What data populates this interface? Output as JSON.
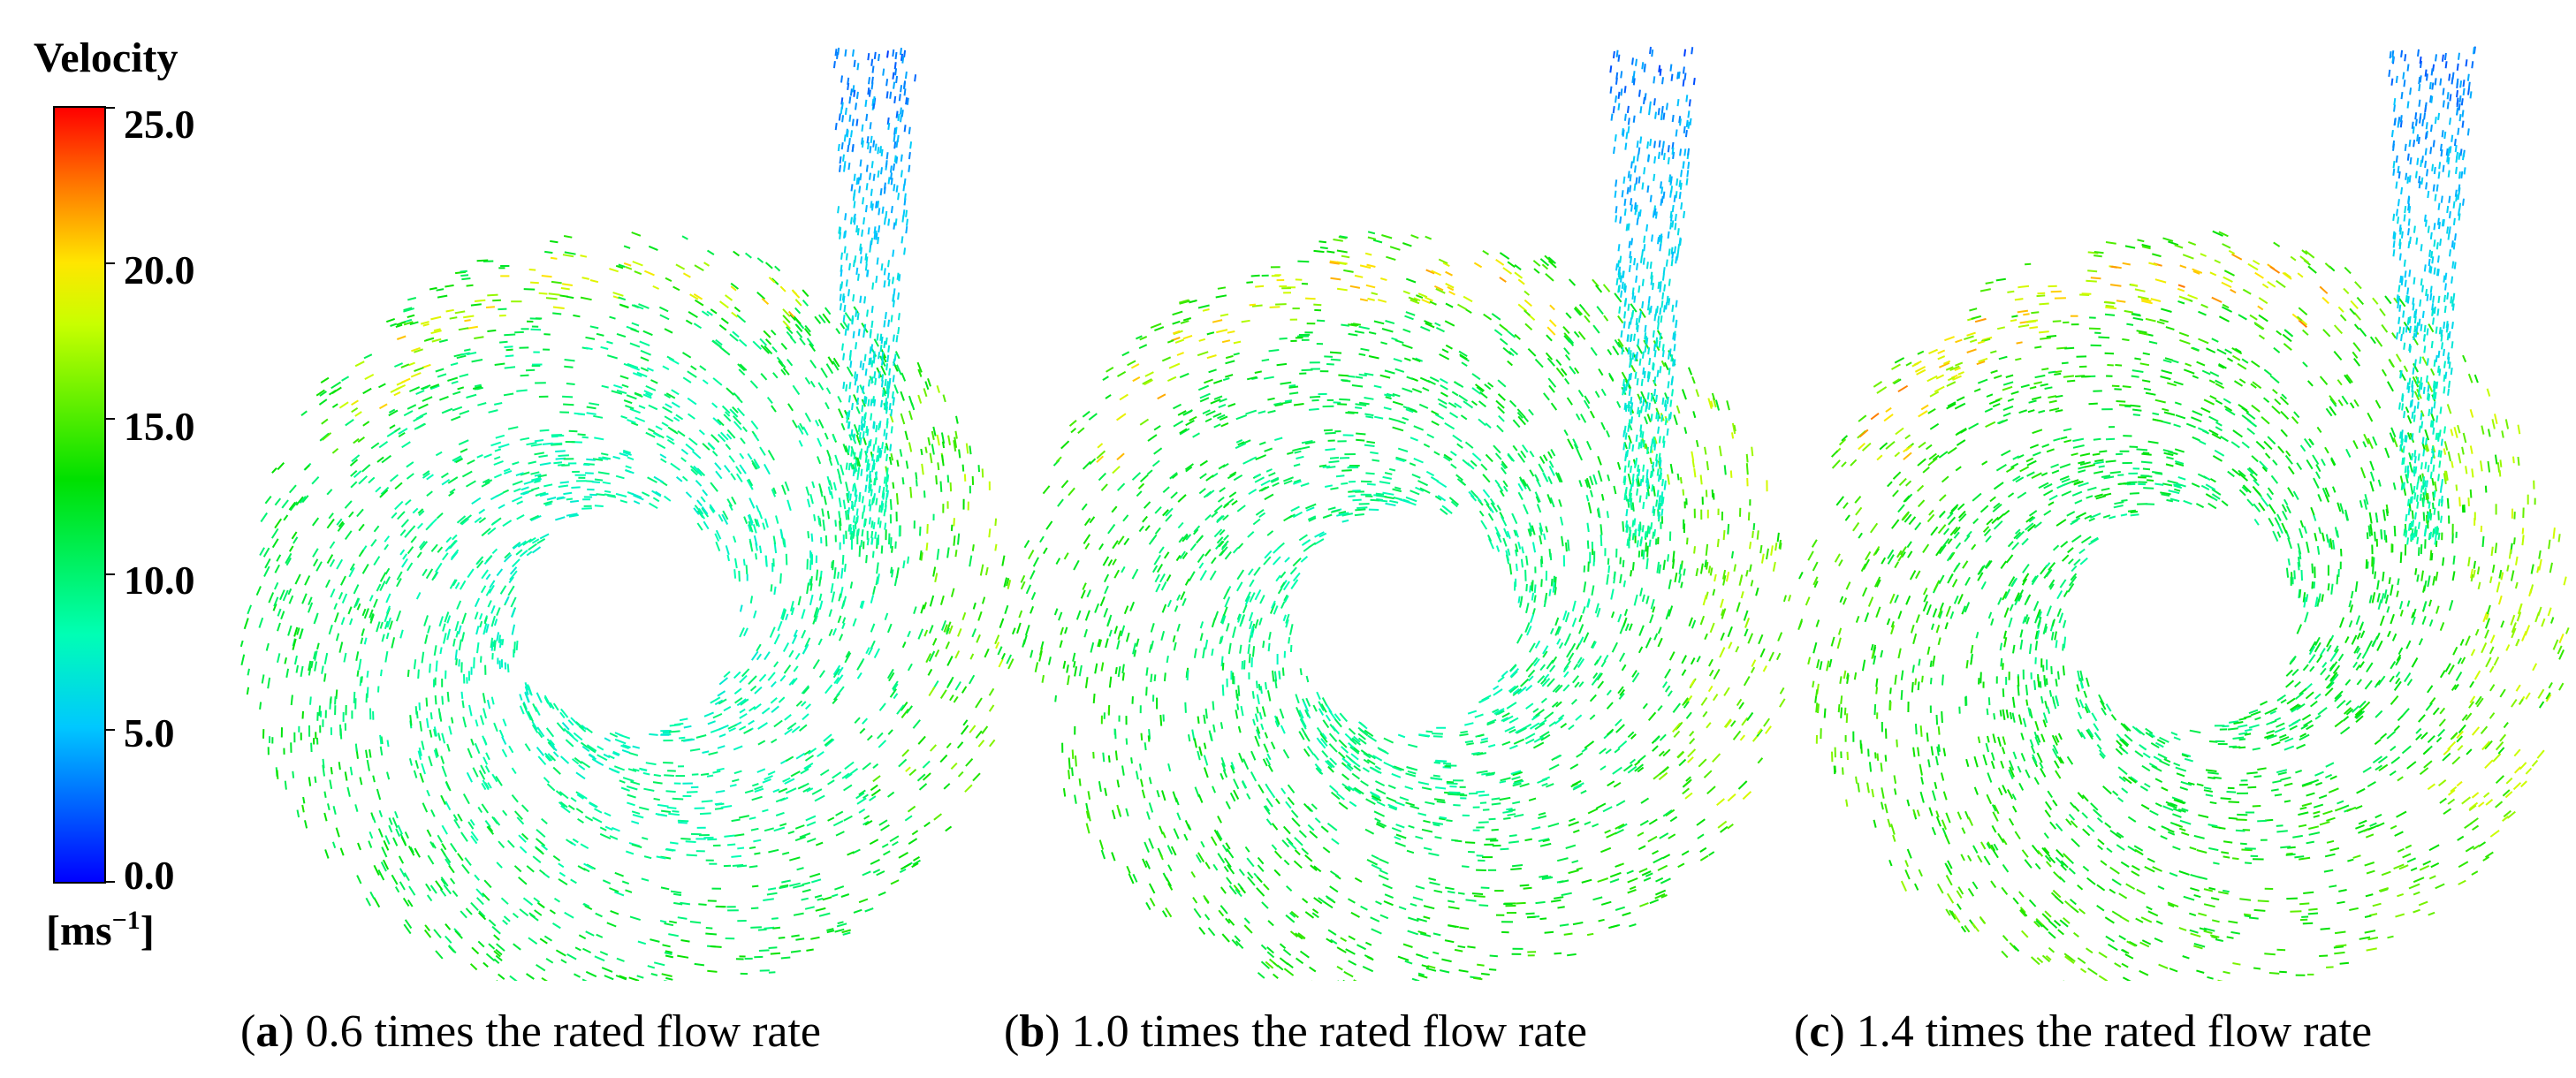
{
  "legend": {
    "title": "Velocity",
    "unit": "[ms⁻¹]",
    "ticks": [
      "25.0",
      "20.0",
      "15.0",
      "10.0",
      "5.0",
      "0.0"
    ],
    "colors": [
      "#0000ff",
      "#00c8ff",
      "#00ffb4",
      "#00e000",
      "#c8ff00",
      "#ffe600",
      "#ff7800",
      "#ff0000"
    ]
  },
  "panels": [
    {
      "letter": "a",
      "caption": " 0.6 times the rated flow rate"
    },
    {
      "letter": "b",
      "caption": " 1.0 times the rated flow rate"
    },
    {
      "letter": "c",
      "caption": " 1.4 times the rated flow rate"
    }
  ]
}
